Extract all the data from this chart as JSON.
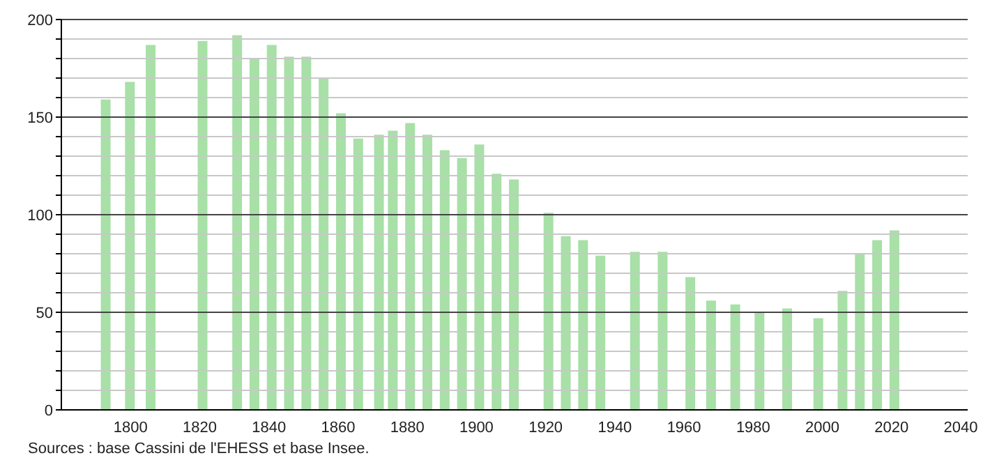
{
  "chart_data": {
    "type": "bar",
    "x": [
      1793,
      1800,
      1806,
      1821,
      1831,
      1836,
      1841,
      1846,
      1851,
      1856,
      1861,
      1866,
      1872,
      1876,
      1881,
      1886,
      1891,
      1896,
      1901,
      1906,
      1911,
      1921,
      1926,
      1931,
      1936,
      1946,
      1954,
      1962,
      1968,
      1975,
      1982,
      1990,
      1999,
      2006,
      2011,
      2016,
      2021
    ],
    "values": [
      159,
      168,
      187,
      189,
      192,
      180,
      187,
      181,
      181,
      170,
      152,
      139,
      141,
      143,
      147,
      141,
      133,
      129,
      136,
      121,
      118,
      101,
      89,
      87,
      79,
      81,
      81,
      68,
      56,
      54,
      50,
      52,
      47,
      61,
      80,
      87,
      92
    ],
    "color": "#a8e0a8",
    "xlim": [
      1780,
      2042
    ],
    "xticks": [
      1800,
      1820,
      1840,
      1860,
      1880,
      1900,
      1920,
      1940,
      1960,
      1980,
      2000,
      2020,
      2040
    ],
    "ylim": [
      0,
      200
    ],
    "yticks": [
      0,
      {
        "value": 10,
        "label": null
      },
      {
        "value": 20,
        "label": null
      },
      {
        "value": 30,
        "label": null
      },
      {
        "value": 40,
        "label": null
      },
      50,
      {
        "value": 60,
        "label": null
      },
      {
        "value": 70,
        "label": null
      },
      {
        "value": 80,
        "label": null
      },
      {
        "value": 90,
        "label": null
      },
      100,
      {
        "value": 110,
        "label": null
      },
      {
        "value": 120,
        "label": null
      },
      {
        "value": 130,
        "label": null
      },
      {
        "value": 140,
        "label": null
      },
      150,
      {
        "value": 160,
        "label": null
      },
      {
        "value": 170,
        "label": null
      },
      {
        "value": 180,
        "label": null
      },
      {
        "value": 190,
        "label": null
      },
      200
    ],
    "grid": "y",
    "annotations": [
      "Sources : base Cassini de l'EHESS et base Insee."
    ]
  }
}
